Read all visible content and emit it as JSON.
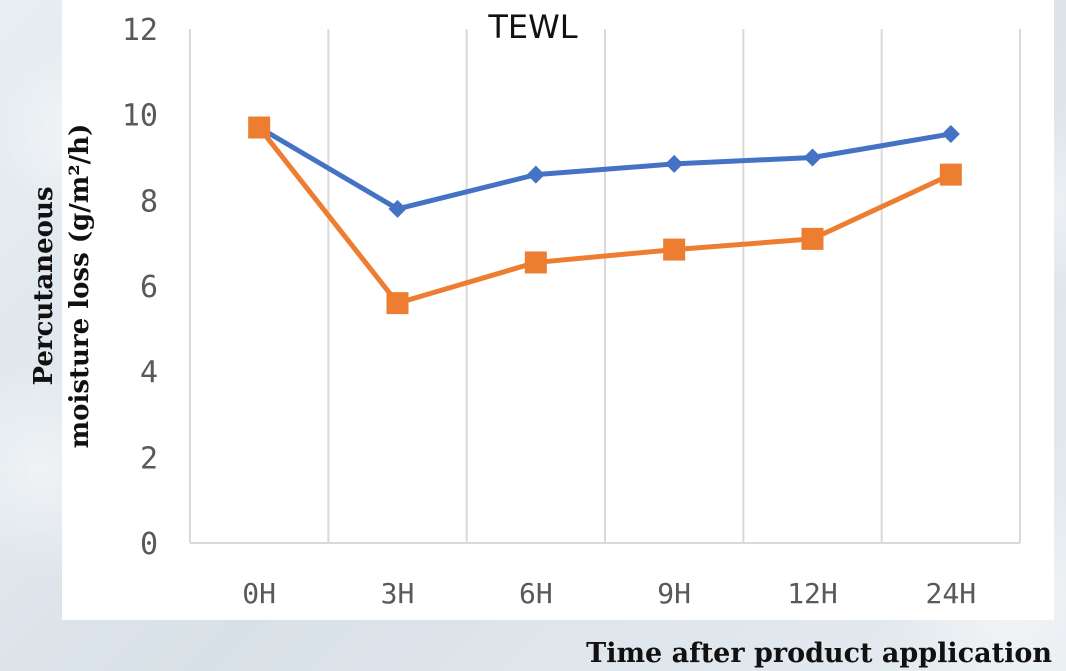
{
  "chart_data": {
    "type": "line",
    "title": "TEWL",
    "xlabel": "Time after product application",
    "ylabel_lines": [
      "Percutaneous",
      "moisture loss (g/m²/h)"
    ],
    "categories": [
      "0H",
      "3H",
      "6H",
      "9H",
      "12H",
      "24H"
    ],
    "ylim": [
      0,
      12
    ],
    "yticks": [
      "0",
      "2",
      "4",
      "6",
      "8",
      "10",
      "12"
    ],
    "grid": "vertical",
    "legend": "none",
    "series": [
      {
        "color": "#4472C4",
        "marker": "diamond",
        "values": [
          9.7,
          7.8,
          8.6,
          8.85,
          9.0,
          9.55
        ]
      },
      {
        "color": "#ED7D31",
        "marker": "square",
        "values": [
          9.7,
          5.6,
          6.55,
          6.85,
          7.1,
          8.6
        ]
      }
    ]
  }
}
